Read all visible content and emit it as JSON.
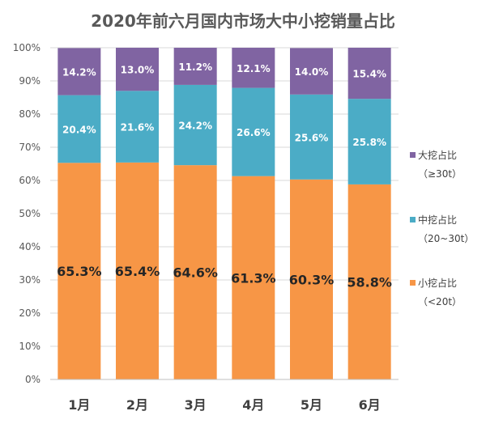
{
  "title": "2020年前六月国内市场大中小挖销量占比",
  "chart_data": {
    "type": "bar",
    "stacked": true,
    "categories": [
      "1月",
      "2月",
      "3月",
      "4月",
      "5月",
      "6月"
    ],
    "series": [
      {
        "name": "小挖占比",
        "name_sub": "（<20t）",
        "color": "#F79646",
        "values": [
          65.3,
          65.4,
          64.6,
          61.3,
          60.3,
          58.8
        ],
        "labels": [
          "65.3%",
          "65.4%",
          "64.6%",
          "61.3%",
          "60.3%",
          "58.8%"
        ]
      },
      {
        "name": "中挖占比",
        "name_sub": "（20~30t）",
        "color": "#4BACC6",
        "values": [
          20.4,
          21.6,
          24.2,
          26.6,
          25.6,
          25.8
        ],
        "labels": [
          "20.4%",
          "21.6%",
          "24.2%",
          "26.6%",
          "25.6%",
          "25.8%"
        ]
      },
      {
        "name": "大挖占比",
        "name_sub": "（≥30t）",
        "color": "#8064A2",
        "values": [
          14.2,
          13.0,
          11.2,
          12.1,
          14.0,
          15.4
        ],
        "labels": [
          "14.2%",
          "13.0%",
          "11.2%",
          "12.1%",
          "14.0%",
          "15.4%"
        ]
      }
    ],
    "yticks": [
      "0%",
      "10%",
      "20%",
      "30%",
      "40%",
      "50%",
      "60%",
      "70%",
      "80%",
      "90%",
      "100%"
    ],
    "ylim": [
      0,
      100
    ],
    "grid": true,
    "legend": "right"
  }
}
